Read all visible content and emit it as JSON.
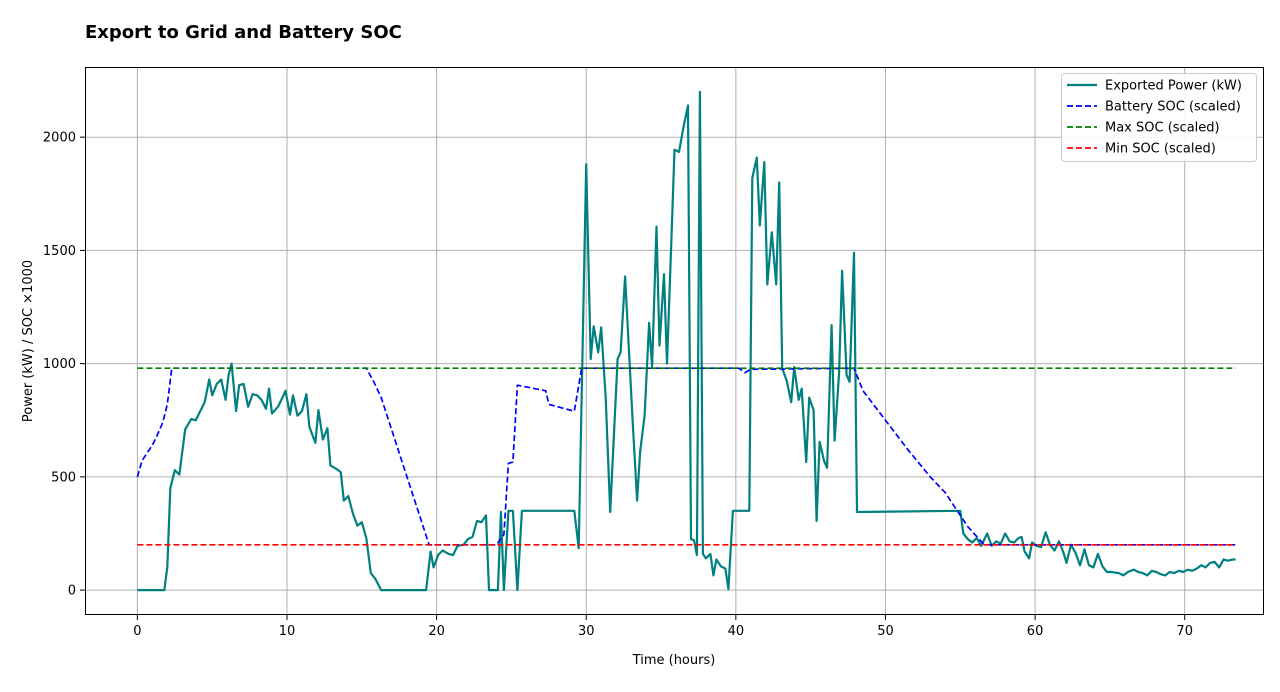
{
  "chart_data": {
    "type": "line",
    "title": "Export to Grid and Battery SOC",
    "xlabel": "Time (hours)",
    "ylabel": "Power (kW) / SOC ×1000",
    "xlim": [
      -3.5,
      75.3
    ],
    "ylim": [
      -110,
      2310
    ],
    "xticks": [
      0,
      10,
      20,
      30,
      40,
      50,
      60,
      70
    ],
    "yticks": [
      0,
      500,
      1000,
      1500,
      2000
    ],
    "grid": true,
    "legend_position": "top-right",
    "series": [
      {
        "name": "Exported Power (kW)",
        "color": "#008080",
        "style": "solid",
        "points": [
          [
            0,
            0
          ],
          [
            1.8,
            0
          ],
          [
            2,
            100
          ],
          [
            2.2,
            450
          ],
          [
            2.5,
            530
          ],
          [
            2.8,
            510
          ],
          [
            3.2,
            710
          ],
          [
            3.6,
            755
          ],
          [
            3.9,
            750
          ],
          [
            4.2,
            790
          ],
          [
            4.5,
            830
          ],
          [
            4.8,
            930
          ],
          [
            5.0,
            860
          ],
          [
            5.3,
            910
          ],
          [
            5.6,
            930
          ],
          [
            5.9,
            840
          ],
          [
            6.1,
            950
          ],
          [
            6.3,
            1000
          ],
          [
            6.6,
            790
          ],
          [
            6.8,
            905
          ],
          [
            7.1,
            910
          ],
          [
            7.4,
            810
          ],
          [
            7.7,
            865
          ],
          [
            8.0,
            860
          ],
          [
            8.3,
            840
          ],
          [
            8.6,
            800
          ],
          [
            8.8,
            890
          ],
          [
            9.0,
            780
          ],
          [
            9.4,
            810
          ],
          [
            9.7,
            850
          ],
          [
            9.9,
            880
          ],
          [
            10.2,
            775
          ],
          [
            10.4,
            860
          ],
          [
            10.7,
            770
          ],
          [
            11.0,
            790
          ],
          [
            11.3,
            865
          ],
          [
            11.5,
            720
          ],
          [
            11.9,
            650
          ],
          [
            12.1,
            795
          ],
          [
            12.4,
            665
          ],
          [
            12.7,
            715
          ],
          [
            12.9,
            550
          ],
          [
            13.3,
            535
          ],
          [
            13.6,
            520
          ],
          [
            13.8,
            395
          ],
          [
            14.1,
            415
          ],
          [
            14.4,
            340
          ],
          [
            14.7,
            285
          ],
          [
            15.0,
            300
          ],
          [
            15.3,
            230
          ],
          [
            15.6,
            75
          ],
          [
            15.9,
            50
          ],
          [
            16.3,
            0
          ],
          [
            19.3,
            0
          ],
          [
            19.6,
            170
          ],
          [
            19.8,
            100
          ],
          [
            20.1,
            155
          ],
          [
            20.4,
            175
          ],
          [
            20.8,
            160
          ],
          [
            21.1,
            155
          ],
          [
            21.4,
            195
          ],
          [
            21.8,
            200
          ],
          [
            22.1,
            225
          ],
          [
            22.4,
            235
          ],
          [
            22.7,
            305
          ],
          [
            23.0,
            300
          ],
          [
            23.3,
            330
          ],
          [
            23.5,
            0
          ],
          [
            24.1,
            0
          ],
          [
            24.3,
            345
          ],
          [
            24.5,
            0
          ],
          [
            24.8,
            350
          ],
          [
            25.1,
            350
          ],
          [
            25.4,
            0
          ],
          [
            25.7,
            350
          ],
          [
            29.2,
            350
          ],
          [
            29.5,
            185
          ],
          [
            30.0,
            1880
          ],
          [
            30.3,
            1020
          ],
          [
            30.5,
            1165
          ],
          [
            30.8,
            1050
          ],
          [
            31.0,
            1160
          ],
          [
            31.3,
            850
          ],
          [
            31.6,
            345
          ],
          [
            32.1,
            1020
          ],
          [
            32.3,
            1050
          ],
          [
            32.6,
            1385
          ],
          [
            33.1,
            750
          ],
          [
            33.4,
            395
          ],
          [
            33.6,
            610
          ],
          [
            33.9,
            770
          ],
          [
            34.2,
            1180
          ],
          [
            34.4,
            985
          ],
          [
            34.7,
            1605
          ],
          [
            34.9,
            1080
          ],
          [
            35.2,
            1395
          ],
          [
            35.4,
            1000
          ],
          [
            35.7,
            1560
          ],
          [
            35.9,
            1945
          ],
          [
            36.2,
            1935
          ],
          [
            36.5,
            2045
          ],
          [
            36.8,
            2140
          ],
          [
            37.0,
            225
          ],
          [
            37.2,
            220
          ],
          [
            37.4,
            155
          ],
          [
            37.6,
            2200
          ],
          [
            37.8,
            160
          ],
          [
            38.0,
            140
          ],
          [
            38.3,
            160
          ],
          [
            38.5,
            65
          ],
          [
            38.7,
            135
          ],
          [
            39.0,
            105
          ],
          [
            39.3,
            95
          ],
          [
            39.5,
            5
          ],
          [
            39.8,
            350
          ],
          [
            40.9,
            350
          ],
          [
            41.1,
            1820
          ],
          [
            41.4,
            1910
          ],
          [
            41.6,
            1610
          ],
          [
            41.9,
            1890
          ],
          [
            42.1,
            1350
          ],
          [
            42.4,
            1580
          ],
          [
            42.7,
            1350
          ],
          [
            42.9,
            1800
          ],
          [
            43.1,
            980
          ],
          [
            43.4,
            925
          ],
          [
            43.7,
            830
          ],
          [
            43.9,
            985
          ],
          [
            44.2,
            840
          ],
          [
            44.4,
            890
          ],
          [
            44.7,
            565
          ],
          [
            44.9,
            850
          ],
          [
            45.2,
            795
          ],
          [
            45.4,
            305
          ],
          [
            45.6,
            655
          ],
          [
            45.9,
            570
          ],
          [
            46.1,
            540
          ],
          [
            46.4,
            1170
          ],
          [
            46.6,
            660
          ],
          [
            46.9,
            960
          ],
          [
            47.1,
            1410
          ],
          [
            47.4,
            950
          ],
          [
            47.6,
            920
          ],
          [
            47.9,
            1490
          ],
          [
            48.1,
            345
          ],
          [
            55.0,
            350
          ],
          [
            55.2,
            250
          ],
          [
            55.5,
            225
          ],
          [
            55.8,
            210
          ],
          [
            56.1,
            230
          ],
          [
            56.4,
            195
          ],
          [
            56.8,
            250
          ],
          [
            57.1,
            195
          ],
          [
            57.4,
            215
          ],
          [
            57.7,
            205
          ],
          [
            58.0,
            250
          ],
          [
            58.3,
            215
          ],
          [
            58.6,
            210
          ],
          [
            58.9,
            230
          ],
          [
            59.1,
            235
          ],
          [
            59.3,
            170
          ],
          [
            59.6,
            140
          ],
          [
            59.8,
            210
          ],
          [
            60.1,
            195
          ],
          [
            60.4,
            190
          ],
          [
            60.7,
            255
          ],
          [
            61.0,
            200
          ],
          [
            61.3,
            175
          ],
          [
            61.6,
            215
          ],
          [
            61.9,
            165
          ],
          [
            62.1,
            120
          ],
          [
            62.4,
            200
          ],
          [
            62.7,
            165
          ],
          [
            63.0,
            110
          ],
          [
            63.3,
            180
          ],
          [
            63.6,
            110
          ],
          [
            63.9,
            100
          ],
          [
            64.2,
            160
          ],
          [
            64.5,
            105
          ],
          [
            64.8,
            80
          ],
          [
            65.1,
            80
          ],
          [
            65.6,
            75
          ],
          [
            65.9,
            65
          ],
          [
            66.2,
            80
          ],
          [
            66.6,
            90
          ],
          [
            66.9,
            80
          ],
          [
            67.2,
            75
          ],
          [
            67.5,
            65
          ],
          [
            67.8,
            85
          ],
          [
            68.1,
            80
          ],
          [
            68.4,
            70
          ],
          [
            68.7,
            65
          ],
          [
            69.0,
            80
          ],
          [
            69.3,
            75
          ],
          [
            69.6,
            85
          ],
          [
            69.9,
            80
          ],
          [
            70.2,
            90
          ],
          [
            70.5,
            85
          ],
          [
            70.8,
            95
          ],
          [
            71.1,
            110
          ],
          [
            71.4,
            100
          ],
          [
            71.7,
            120
          ],
          [
            72.0,
            125
          ],
          [
            72.3,
            100
          ],
          [
            72.6,
            135
          ],
          [
            72.9,
            130
          ],
          [
            73.2,
            135
          ],
          [
            73.4,
            135
          ]
        ]
      },
      {
        "name": "Battery SOC (scaled)",
        "color": "#0000ff",
        "style": "dashed",
        "points": [
          [
            0,
            500
          ],
          [
            0.3,
            570
          ],
          [
            0.6,
            600
          ],
          [
            1.0,
            640
          ],
          [
            1.3,
            680
          ],
          [
            1.7,
            740
          ],
          [
            2,
            820
          ],
          [
            2.3,
            980
          ],
          [
            15.3,
            980
          ],
          [
            15.8,
            920
          ],
          [
            16.3,
            850
          ],
          [
            19.5,
            200
          ],
          [
            24.0,
            200
          ],
          [
            24.5,
            245
          ],
          [
            24.8,
            560
          ],
          [
            25.1,
            565
          ],
          [
            25.4,
            905
          ],
          [
            27.3,
            880
          ],
          [
            27.5,
            820
          ],
          [
            29.2,
            790
          ],
          [
            29.7,
            980
          ],
          [
            40.2,
            980
          ],
          [
            40.6,
            960
          ],
          [
            41.0,
            975
          ],
          [
            47.9,
            980
          ],
          [
            48.5,
            880
          ],
          [
            50,
            750
          ],
          [
            51.5,
            620
          ],
          [
            53.0,
            500
          ],
          [
            54.0,
            430
          ],
          [
            55.5,
            280
          ],
          [
            56.6,
            200
          ],
          [
            73.4,
            200
          ]
        ]
      },
      {
        "name": "Max SOC (scaled)",
        "color": "#008000",
        "style": "dashed",
        "points": [
          [
            0,
            980
          ],
          [
            73.4,
            980
          ]
        ]
      },
      {
        "name": "Min SOC (scaled)",
        "color": "#ff0000",
        "style": "dashed",
        "points": [
          [
            0,
            200
          ],
          [
            73.4,
            200
          ]
        ]
      }
    ]
  }
}
